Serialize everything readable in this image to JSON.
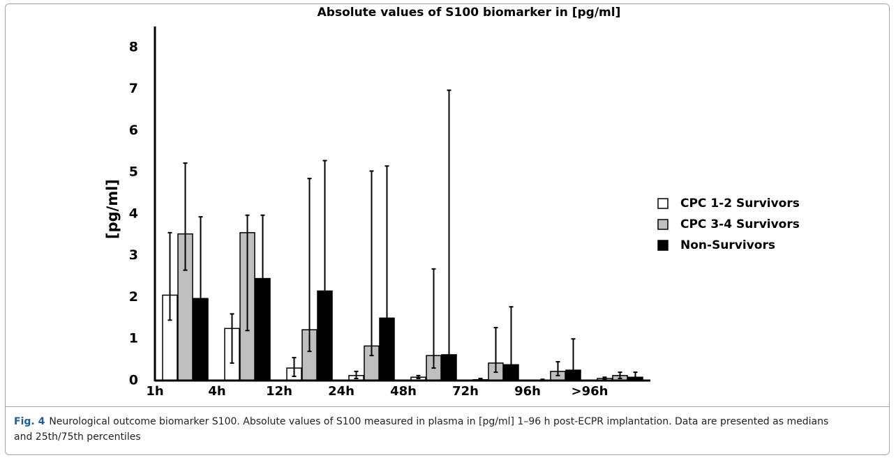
{
  "chart_data": {
    "type": "bar",
    "title": "Absolute values of S100 biomarker in [pg/ml]",
    "y_label": "[pg/ml]",
    "categories": [
      "1h",
      "4h",
      "12h",
      "24h",
      "48h",
      "72h",
      "96h",
      ">96h"
    ],
    "series": [
      {
        "name": "CPC 1-2 Survivors",
        "color": "#ffffff",
        "values": [
          2.05,
          1.25,
          0.3,
          0.12,
          0.08,
          0.02,
          0.01,
          0.05
        ],
        "q25": [
          1.45,
          0.42,
          0.1,
          0.05,
          0.05,
          0.01,
          0.0,
          0.03
        ],
        "q75": [
          3.55,
          1.6,
          0.55,
          0.22,
          0.12,
          0.05,
          0.03,
          0.08
        ]
      },
      {
        "name": "CPC 3-4 Survivors",
        "color": "#bfbfbf",
        "values": [
          3.52,
          3.55,
          1.22,
          0.83,
          0.6,
          0.42,
          0.22,
          0.12
        ],
        "q25": [
          2.65,
          1.2,
          0.7,
          0.6,
          0.3,
          0.2,
          0.12,
          0.05
        ],
        "q75": [
          5.22,
          3.97,
          4.85,
          5.03,
          2.68,
          1.27,
          0.45,
          0.2
        ]
      },
      {
        "name": "Non-Survivors",
        "color": "#000000",
        "values": [
          1.97,
          2.45,
          2.15,
          1.5,
          0.62,
          0.38,
          0.25,
          0.08
        ],
        "q25": [
          1.5,
          1.8,
          1.2,
          0.9,
          0.3,
          0.2,
          0.1,
          0.04
        ],
        "q75": [
          3.93,
          3.97,
          5.28,
          5.15,
          6.97,
          1.77,
          1.0,
          0.2
        ]
      }
    ],
    "ylim": [
      0,
      8.5
    ],
    "yticks": [
      0,
      1,
      2,
      3,
      4,
      5,
      6,
      7,
      8
    ],
    "legend": "right",
    "grid": false
  },
  "caption": {
    "label": "Fig. 4",
    "text": "Neurological outcome biomarker S100. Absolute values of S100 measured in plasma in [pg/ml] 1–96 h post-ECPR implantation. Data are presented as medians and 25th/75th percentiles"
  }
}
